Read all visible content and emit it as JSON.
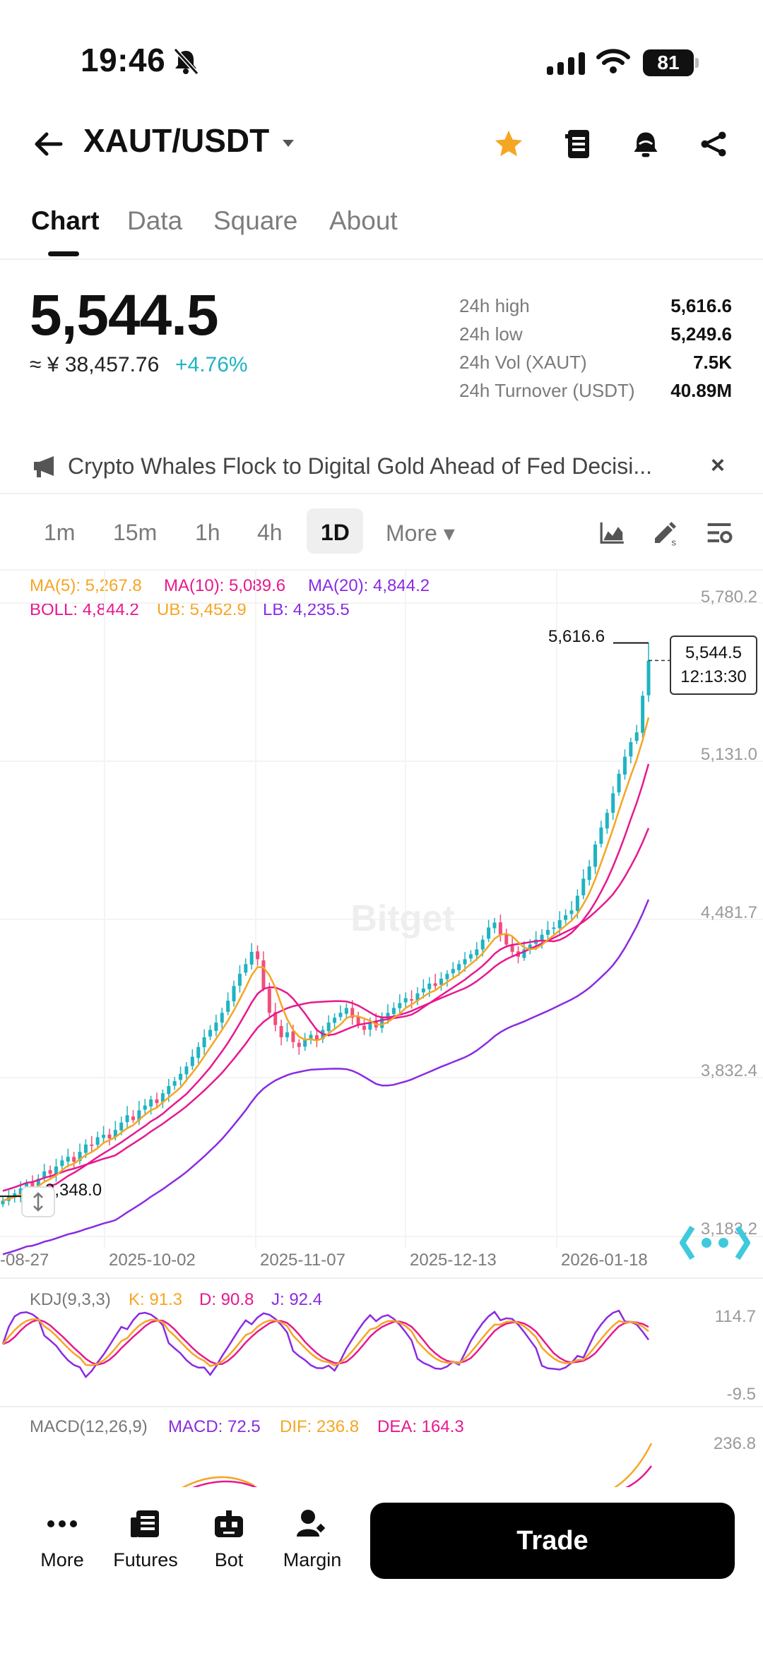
{
  "status_bar": {
    "time": "19:46",
    "battery": "81"
  },
  "header": {
    "pair": "XAUT/USDT"
  },
  "tabs": [
    {
      "label": "Chart",
      "active": true
    },
    {
      "label": "Data"
    },
    {
      "label": "Square"
    },
    {
      "label": "About"
    }
  ],
  "ticker": {
    "last_price": "5,544.5",
    "cny_price": "≈ ¥ 38,457.76",
    "change_pct": "+4.76%",
    "change_color": "#1fb3c2",
    "stats": [
      {
        "label": "24h high",
        "value": "5,616.6"
      },
      {
        "label": "24h low",
        "value": "5,249.6"
      },
      {
        "label": "24h Vol (XAUT)",
        "value": "7.5K"
      },
      {
        "label": "24h Turnover (USDT)",
        "value": "40.89M"
      }
    ]
  },
  "news": {
    "headline": "Crypto Whales Flock to Digital Gold Ahead of Fed Decisi..."
  },
  "intervals": [
    {
      "label": "1m"
    },
    {
      "label": "15m"
    },
    {
      "label": "1h"
    },
    {
      "label": "4h"
    },
    {
      "label": "1D",
      "active": true
    },
    {
      "label": "More ▾"
    }
  ],
  "indicators": {
    "ma5": "MA(5): 5,267.8",
    "ma10": "MA(10): 5,089.6",
    "ma20": "MA(20): 4,844.2",
    "boll": "BOLL: 4,844.2",
    "ub": "UB: 5,452.9",
    "lb": "LB: 4,235.5",
    "kdj_title": "KDJ(9,3,3)",
    "kdj_k": "K: 91.3",
    "kdj_d": "D: 90.8",
    "kdj_j": "J: 92.4",
    "macd_title": "MACD(12,26,9)",
    "macd_val": "MACD: 72.5",
    "macd_dif": "DIF: 236.8",
    "macd_dea": "DEA: 164.3"
  },
  "colors": {
    "up": "#1fb3c2",
    "down": "#ef4f7a",
    "ma5": "#f5a623",
    "ma10": "#e6198f",
    "ma20": "#8a2be2",
    "accent_star": "#f5a623"
  },
  "watermark": "Bitget",
  "chart_data": {
    "type": "candlestick",
    "y_ticks": [
      "5,780.2",
      "5,131.0",
      "4,481.7",
      "3,832.4",
      "3,183.2"
    ],
    "x_ticks": [
      "-08-27",
      "2025-10-02",
      "2025-11-07",
      "2025-12-13",
      "2026-01-18"
    ],
    "high_marker": "5,616.6",
    "low_marker": "3,348.0",
    "current_price": "5,544.5",
    "countdown": "12:13:30",
    "kdj_ticks": [
      "114.7",
      "-9.5"
    ],
    "macd_ticks": [
      "236.8"
    ],
    "close_series": [
      3330,
      3345,
      3360,
      3380,
      3400,
      3385,
      3420,
      3450,
      3440,
      3470,
      3495,
      3510,
      3490,
      3530,
      3560,
      3555,
      3590,
      3600,
      3585,
      3620,
      3650,
      3680,
      3660,
      3700,
      3720,
      3745,
      3730,
      3770,
      3800,
      3820,
      3850,
      3880,
      3920,
      3960,
      4000,
      4030,
      4060,
      4100,
      4150,
      4210,
      4260,
      4300,
      4350,
      4320,
      4200,
      4100,
      4050,
      4000,
      4020,
      3980,
      3960,
      3990,
      4010,
      3990,
      4030,
      4060,
      4080,
      4100,
      4120,
      4080,
      4050,
      4030,
      4060,
      4040,
      4080,
      4100,
      4120,
      4140,
      4160,
      4150,
      4180,
      4200,
      4220,
      4210,
      4240,
      4260,
      4280,
      4300,
      4320,
      4340,
      4360,
      4400,
      4450,
      4470,
      4420,
      4380,
      4350,
      4330,
      4360,
      4380,
      4400,
      4420,
      4440,
      4450,
      4480,
      4500,
      4520,
      4580,
      4650,
      4700,
      4790,
      4860,
      4920,
      5000,
      5080,
      5150,
      5210,
      5250,
      5400,
      5544
    ]
  },
  "bottom_nav": [
    {
      "label": "More"
    },
    {
      "label": "Futures"
    },
    {
      "label": "Bot"
    },
    {
      "label": "Margin"
    }
  ],
  "trade_button": "Trade"
}
